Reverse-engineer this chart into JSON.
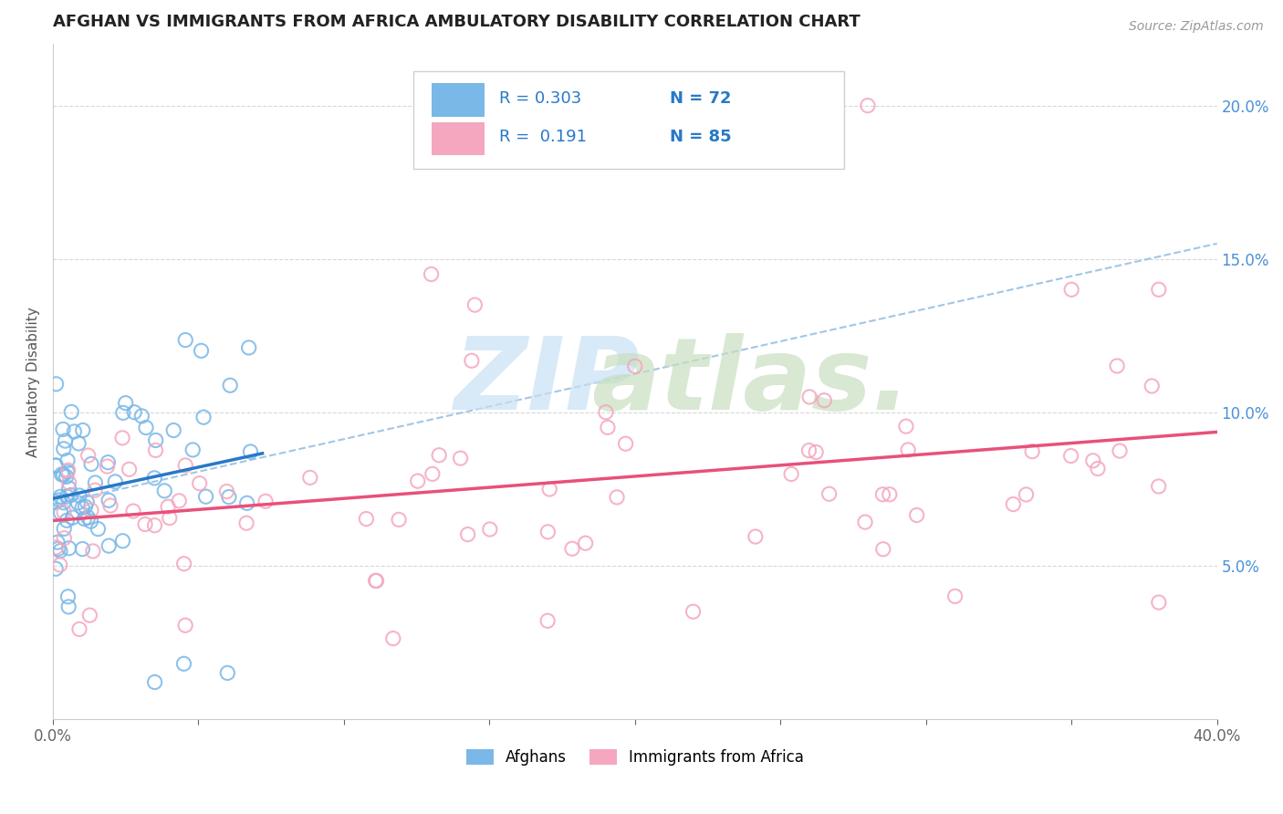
{
  "title": "AFGHAN VS IMMIGRANTS FROM AFRICA AMBULATORY DISABILITY CORRELATION CHART",
  "source": "Source: ZipAtlas.com",
  "ylabel": "Ambulatory Disability",
  "xlim": [
    0.0,
    0.4
  ],
  "ylim": [
    0.0,
    0.22
  ],
  "xtick_positions": [
    0.0,
    0.05,
    0.1,
    0.15,
    0.2,
    0.25,
    0.3,
    0.35,
    0.4
  ],
  "xticklabels": [
    "0.0%",
    "",
    "",
    "",
    "",
    "",
    "",
    "",
    "40.0%"
  ],
  "ytick_positions": [
    0.05,
    0.1,
    0.15,
    0.2
  ],
  "yticklabels": [
    "5.0%",
    "10.0%",
    "15.0%",
    "20.0%"
  ],
  "color_afghan": "#7ab8e8",
  "color_africa": "#f4a7be",
  "color_trend_afghan": "#2878c8",
  "color_trend_africa": "#e8507a",
  "color_dashed_ref": "#8ab8e0",
  "watermark_zip_color": "#c8e0f5",
  "watermark_atlas_color": "#c8dfc0",
  "legend_box_color": "#f0f0f0",
  "legend_border_color": "#d0d0d0",
  "grid_color": "#d8d8d8"
}
